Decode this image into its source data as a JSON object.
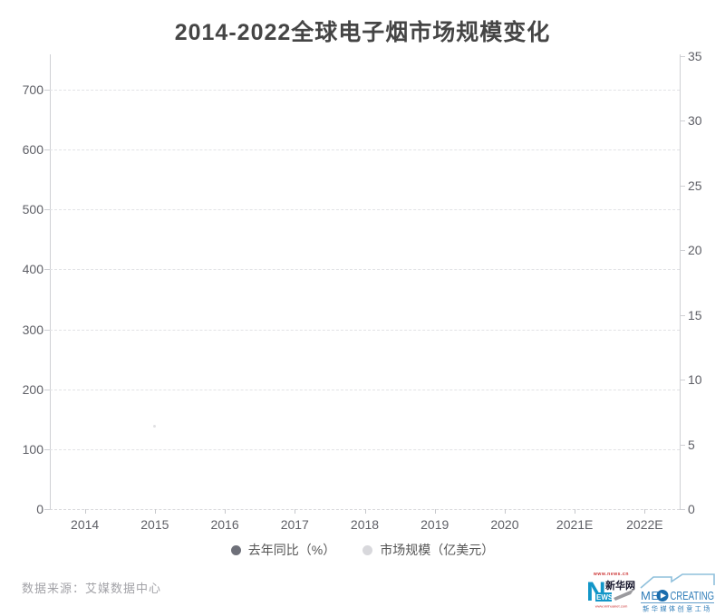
{
  "title": "2014-2022全球电子烟市场规模变化",
  "chart_data": {
    "type": "line",
    "title": "2014-2022全球电子烟市场规模变化",
    "categories": [
      "2014",
      "2015",
      "2016",
      "2017",
      "2018",
      "2019",
      "2020",
      "2021E",
      "2022E"
    ],
    "series": [
      {
        "name": "去年同比（%）",
        "yaxis": "left",
        "marker_color": "#6e7079",
        "values": []
      },
      {
        "name": "市场规模（亿美元）",
        "yaxis": "right",
        "marker_color": "#d8d8dc",
        "values": []
      }
    ],
    "left_axis": {
      "ticks": [
        0,
        100,
        200,
        300,
        400,
        500,
        600,
        700
      ],
      "min": 0,
      "max": 700
    },
    "right_axis": {
      "ticks": [
        0,
        5,
        10,
        15,
        20,
        25,
        30,
        35
      ],
      "min": 0,
      "max": 35
    },
    "grid": "horizontal dashed gridlines, white background",
    "legend_position": "bottom center",
    "note": "plot area is empty — no series data points are drawn in the screenshot"
  },
  "source": {
    "text": "数据来源：艾媒数据中心"
  },
  "logos": {
    "xinhua": {
      "url_top": "www.news.cn",
      "letter": "N",
      "word": "EWS",
      "site_name": "新华网",
      "url_bottom": "www.xinhuanet.com"
    },
    "medcreating": {
      "word_left": "ME",
      "word_right": "CREATING",
      "subtitle": "新华媒体创意工场"
    }
  },
  "colors": {
    "title_text": "#454545",
    "axis_line": "#cfd0d4",
    "grid_line": "#e2e3e6",
    "axis_label": "#5e5f66",
    "legend_text": "#555555",
    "legend_yoy_dot": "#6e7079",
    "legend_market_dot": "#d8d8dc",
    "source_text": "#a2a2a7",
    "xinhua_blue": "#1296c8",
    "xinhua_red": "#cc3333",
    "xinhua_dark": "#14142a",
    "med_blue": "#2e7cb8",
    "med_light_blue": "#8fc0dc",
    "med_dark_blue": "#1b6dad"
  }
}
